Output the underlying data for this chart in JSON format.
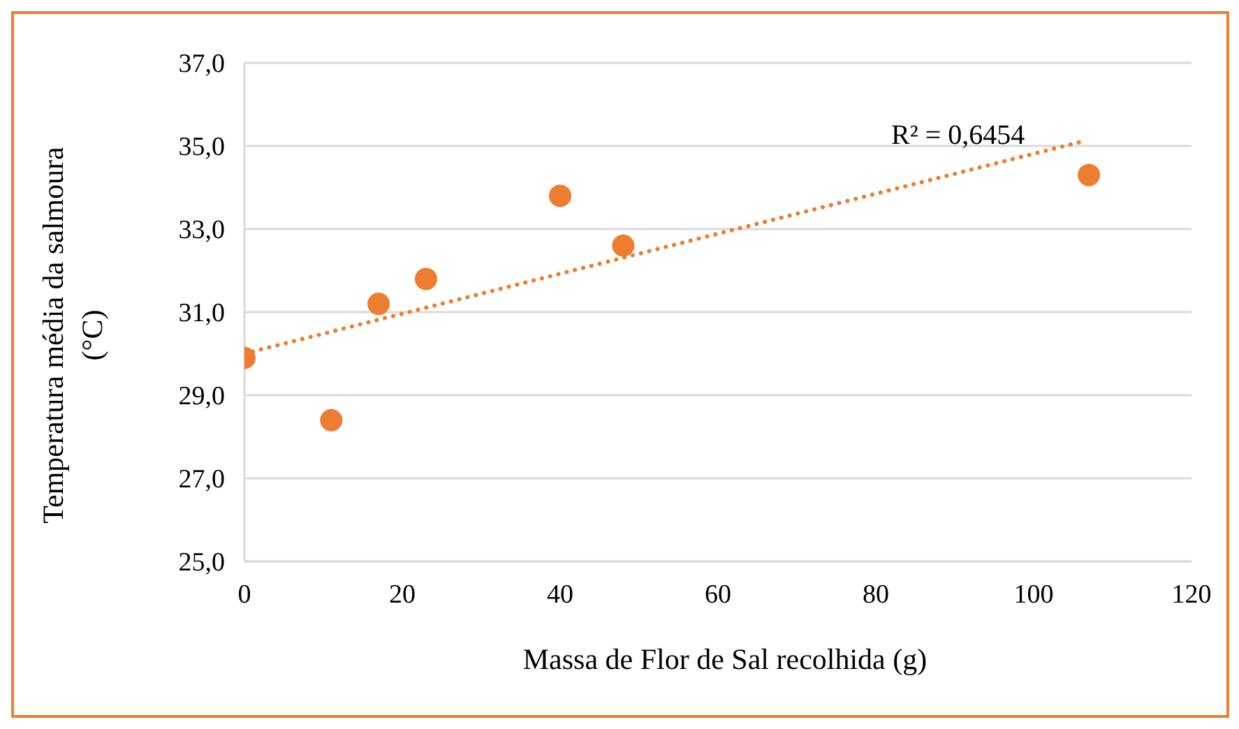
{
  "chart_data": {
    "type": "scatter",
    "xlabel": "Massa de Flor de Sal recolhida (g)",
    "ylabel": "Temperatura média da salmoura (°C)",
    "series": [
      {
        "color": "#ed7d31",
        "x": [
          0,
          11,
          17,
          23,
          40,
          48,
          107
        ],
        "values": [
          29.9,
          28.4,
          31.2,
          31.8,
          33.8,
          32.6,
          34.3
        ],
        "marker": "circle"
      },
      {
        "type": "line",
        "color": "#ed7d31",
        "x": [
          0,
          106
        ],
        "values": [
          30.0,
          35.1
        ],
        "line_style": "dotted",
        "marker": "none"
      }
    ],
    "annotations": [
      "R² = 0,6454"
    ],
    "xlim": [
      0,
      120
    ],
    "xticks": [
      0,
      20,
      40,
      60,
      80,
      100,
      120
    ],
    "ylim": [
      25,
      37
    ],
    "yticks": [
      {
        "value": 25,
        "label": "25,0"
      },
      {
        "value": 27,
        "label": "27,0"
      },
      {
        "value": 29,
        "label": "29,0"
      },
      {
        "value": 31,
        "label": "31,0"
      },
      {
        "value": 33,
        "label": "33,0"
      },
      {
        "value": 35,
        "label": "35,0"
      },
      {
        "value": 37,
        "label": "37,0"
      }
    ],
    "grid": "y",
    "legend": false
  }
}
